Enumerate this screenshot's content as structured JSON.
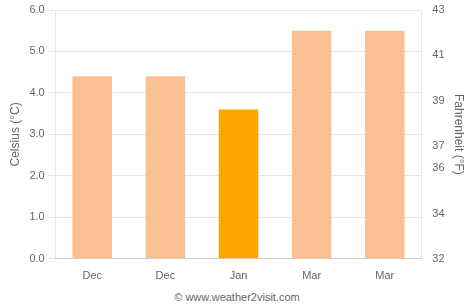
{
  "chart_data": {
    "type": "bar",
    "categories": [
      "Dec",
      "Dec",
      "Jan",
      "Mar",
      "Mar"
    ],
    "values": [
      4.4,
      4.4,
      3.6,
      5.5,
      5.5
    ],
    "colors": [
      "#FBBF94",
      "#FBBF94",
      "#FFA500",
      "#FBBF94",
      "#FBBF94"
    ],
    "ylabel": "Celsius (°C)",
    "y2label": "Fahrenheit (°F)",
    "ylim": [
      0.0,
      6.0
    ],
    "yticks": [
      {
        "value": 0,
        "label": "0.0"
      },
      {
        "value": 1,
        "label": "1.0"
      },
      {
        "value": 2,
        "label": "2.0"
      },
      {
        "value": 3,
        "label": "3.0"
      },
      {
        "value": 4,
        "label": "4.0"
      },
      {
        "value": 5,
        "label": "5.0"
      },
      {
        "value": 6,
        "label": "6.0"
      }
    ],
    "y2lim": [
      32,
      43
    ],
    "y2ticks": [
      32,
      34,
      36,
      37,
      39,
      41,
      43
    ],
    "grid": true,
    "annotations": [
      "© www.weather2visit.com"
    ]
  }
}
